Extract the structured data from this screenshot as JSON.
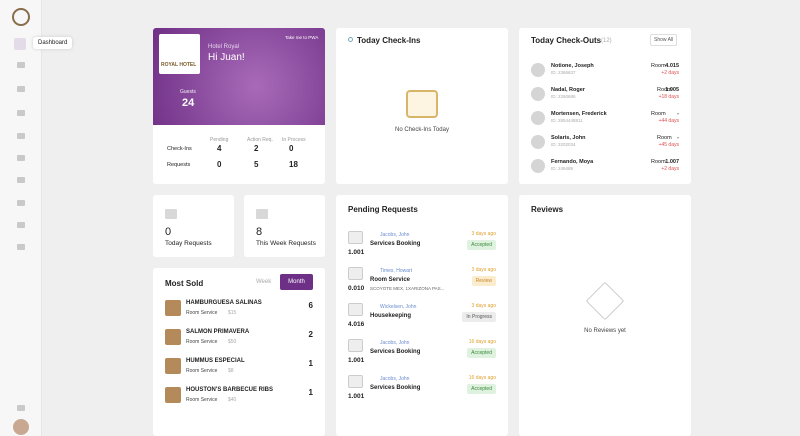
{
  "sidebar": {
    "tooltip": "Dashboard"
  },
  "welcome": {
    "logo_text": "ROYAL HOTEL",
    "hotel": "Hotel Royal",
    "greeting": "Hi Juan!",
    "pwa_link": "Take me to PWA",
    "guests_label": "Guests",
    "guests": "24",
    "columns": [
      "Pending",
      "Action Req.",
      "In Process"
    ],
    "rows": [
      {
        "label": "Check-Ins",
        "values": [
          "4",
          "2",
          "0"
        ]
      },
      {
        "label": "Requests",
        "values": [
          "0",
          "5",
          "18"
        ]
      }
    ]
  },
  "checkins": {
    "title": "Today Check-Ins",
    "empty": "No Check-Ins Today"
  },
  "checkouts": {
    "title": "Today Check-Outs",
    "count": "(12)",
    "button": "Show All",
    "items": [
      {
        "name": "Notione, Joseph",
        "id": "ID: 2366637",
        "room_label": "Room",
        "room": "4.015",
        "days": "+2 days"
      },
      {
        "name": "Nadal, Roger",
        "id": "ID: 2260686",
        "room_label": "Room",
        "room": "1.005",
        "days": "+18 days"
      },
      {
        "name": "Mortensen, Frederick",
        "id": "ID: 2854448811",
        "room_label": "Room",
        "room": "-",
        "days": "+44 days"
      },
      {
        "name": "Solaris, John",
        "id": "ID: 3202034",
        "room_label": "Room",
        "room": "-",
        "days": "+45 days"
      },
      {
        "name": "Fernando, Moya",
        "id": "ID: 249489",
        "room_label": "Room",
        "room": "1.007",
        "days": "+2 days"
      }
    ]
  },
  "stats": [
    {
      "value": "0",
      "label": "Today Requests"
    },
    {
      "value": "8",
      "label": "This Week Requests"
    }
  ],
  "most_sold": {
    "title": "Most Sold",
    "tabs": [
      "Week",
      "Month"
    ],
    "items": [
      {
        "name": "HAMBURGUESA SALINAS",
        "category": "Room Service",
        "price": "$15",
        "count": "6"
      },
      {
        "name": "SALMON PRIMAVERA",
        "category": "Room Service",
        "price": "$50",
        "count": "2"
      },
      {
        "name": "HUMMUS ESPECIAL",
        "category": "Room Service",
        "price": "$8",
        "count": "1"
      },
      {
        "name": "HOUSTON'S BARBECUE RIBS",
        "category": "Room Service",
        "price": "$40",
        "count": "1"
      }
    ]
  },
  "pending": {
    "title": "Pending Requests",
    "items": [
      {
        "room": "1.001",
        "guest": "Jacobs, John",
        "service": "Services Booking",
        "detail": null,
        "time": "3 days ago",
        "status": "Accepted"
      },
      {
        "room": "0.010",
        "guest": "Times, Howart",
        "service": "Room Service",
        "detail": "SCOYOTE MEX, 1XARIZONA PAS...",
        "time": "3 days ago",
        "status": "Review"
      },
      {
        "room": "4.016",
        "guest": "Wickelsen, John",
        "service": "Housekeeping",
        "detail": null,
        "time": "3 days ago",
        "status": "In Progress"
      },
      {
        "room": "1.001",
        "guest": "Jacobs, John",
        "service": "Services Booking",
        "detail": null,
        "time": "16 days ago",
        "status": "Accepted"
      },
      {
        "room": "1.001",
        "guest": "Jacobs, John",
        "service": "Services Booking",
        "detail": null,
        "time": "16 days ago",
        "status": "Accepted"
      }
    ]
  },
  "reviews": {
    "title": "Reviews",
    "empty": "No Reviews yet"
  }
}
